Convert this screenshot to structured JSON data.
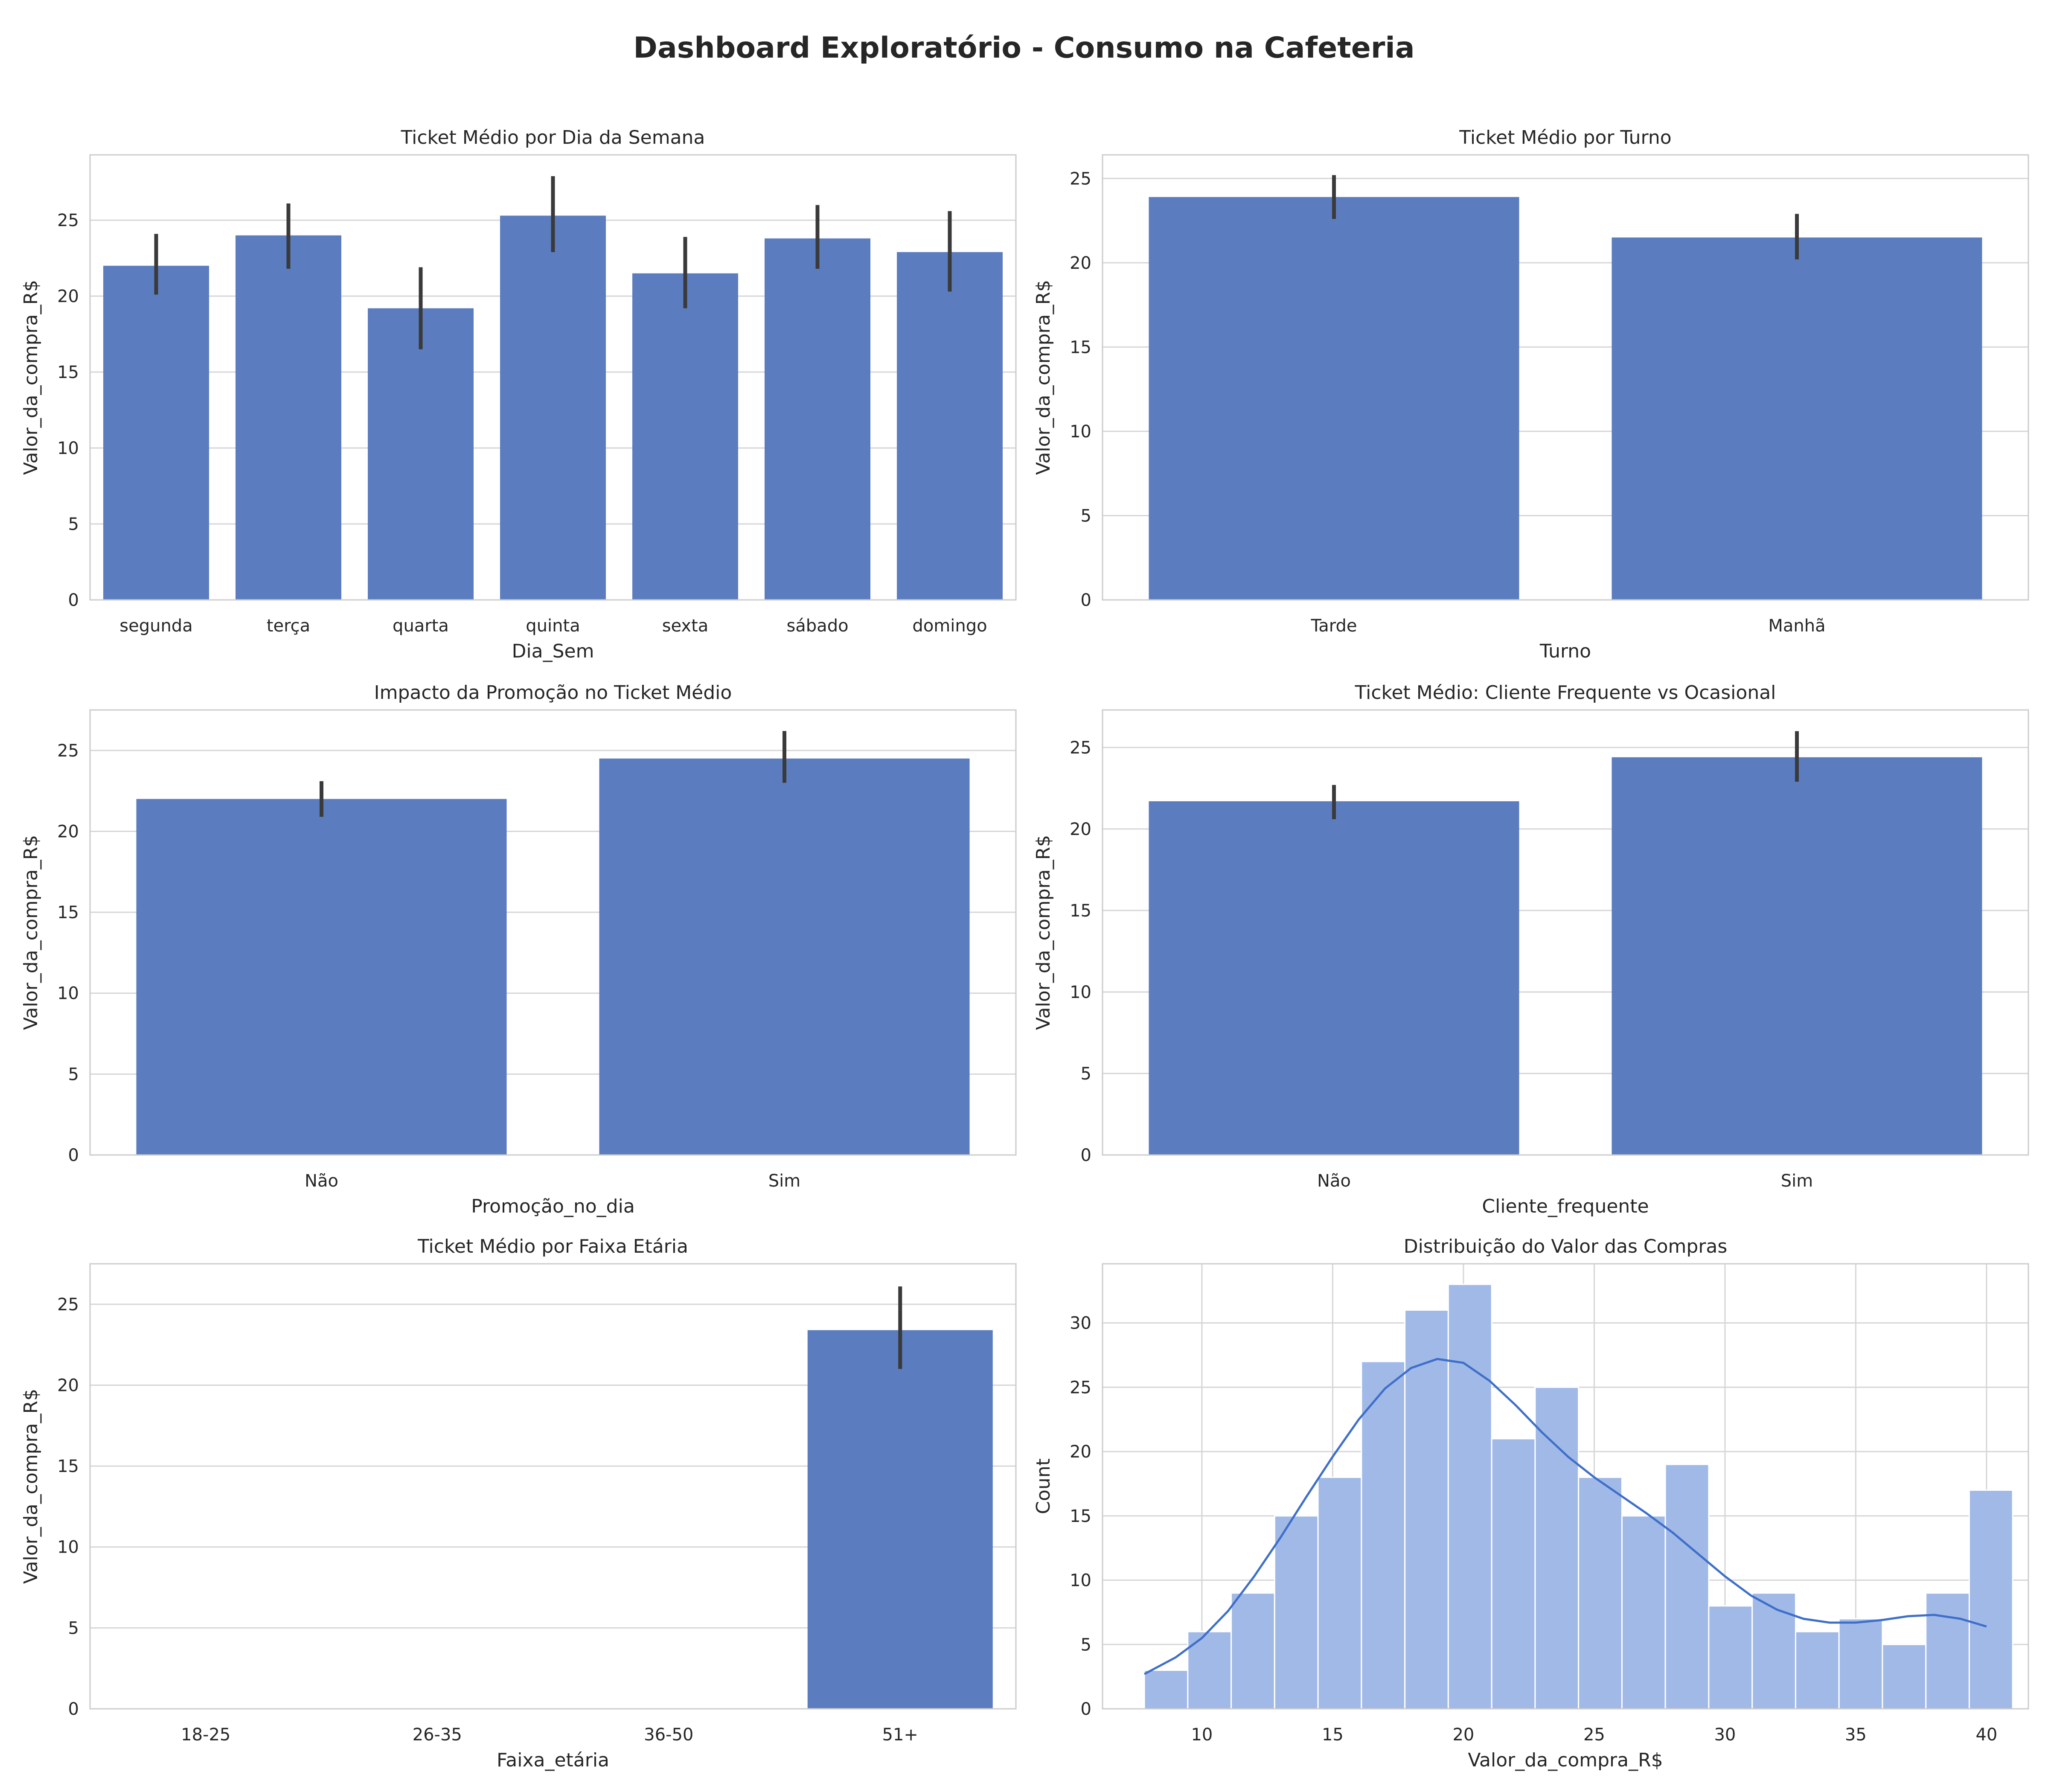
{
  "dashboard": {
    "title": "Dashboard Exploratório - Consumo na Cafeteria"
  },
  "chart_data": [
    {
      "type": "bar",
      "title": "Ticket Médio por Dia da Semana",
      "xlabel": "Dia_Sem",
      "ylabel": "Valor_da_compra_R$",
      "categories": [
        "segunda",
        "terça",
        "quarta",
        "quinta",
        "sexta",
        "sábado",
        "domingo"
      ],
      "values": [
        22.0,
        24.0,
        19.2,
        25.3,
        21.5,
        23.8,
        22.9
      ],
      "ci_low": [
        20.1,
        21.8,
        16.5,
        22.9,
        19.2,
        21.8,
        20.3
      ],
      "ci_high": [
        24.1,
        26.1,
        21.9,
        27.9,
        23.9,
        26.0,
        25.6
      ],
      "yticks": [
        0,
        5,
        10,
        15,
        20,
        25
      ],
      "ylim": [
        0,
        29.3
      ],
      "grid": true
    },
    {
      "type": "bar",
      "title": "Ticket Médio por Turno",
      "xlabel": "Turno",
      "ylabel": "Valor_da_compra_R$",
      "categories": [
        "Tarde",
        "Manhã"
      ],
      "values": [
        23.9,
        21.5
      ],
      "ci_low": [
        22.6,
        20.2
      ],
      "ci_high": [
        25.2,
        22.9
      ],
      "yticks": [
        0,
        5,
        10,
        15,
        20,
        25
      ],
      "ylim": [
        0,
        26.4
      ],
      "grid": true
    },
    {
      "type": "bar",
      "title": "Impacto da Promoção no Ticket Médio",
      "xlabel": "Promoção_no_dia",
      "ylabel": "Valor_da_compra_R$",
      "categories": [
        "Não",
        "Sim"
      ],
      "values": [
        22.0,
        24.5
      ],
      "ci_low": [
        20.9,
        23.0
      ],
      "ci_high": [
        23.1,
        26.2
      ],
      "yticks": [
        0,
        5,
        10,
        15,
        20,
        25
      ],
      "ylim": [
        0,
        27.5
      ],
      "grid": true
    },
    {
      "type": "bar",
      "title": "Ticket Médio: Cliente Frequente vs Ocasional",
      "xlabel": "Cliente_frequente",
      "ylabel": "Valor_da_compra_R$",
      "categories": [
        "Não",
        "Sim"
      ],
      "values": [
        21.7,
        24.4
      ],
      "ci_low": [
        20.6,
        22.9
      ],
      "ci_high": [
        22.7,
        26.0
      ],
      "yticks": [
        0,
        5,
        10,
        15,
        20,
        25
      ],
      "ylim": [
        0,
        27.3
      ],
      "grid": true
    },
    {
      "type": "bar",
      "title": "Ticket Médio por Faixa Etária",
      "xlabel": "Faixa_etária",
      "ylabel": "Valor_da_compra_R$",
      "categories": [
        "18-25",
        "26-35",
        "36-50",
        "51+"
      ],
      "values": [
        null,
        null,
        null,
        23.4
      ],
      "ci_low": [
        null,
        null,
        null,
        21.0
      ],
      "ci_high": [
        null,
        null,
        null,
        26.1
      ],
      "yticks": [
        0,
        5,
        10,
        15,
        20,
        25
      ],
      "ylim": [
        0,
        27.5
      ],
      "grid": true
    },
    {
      "type": "histogram",
      "title": "Distribuição do Valor das Compras",
      "xlabel": "Valor_da_compra_R$",
      "ylabel": "Count",
      "bin_start": 7.8,
      "bin_width": 1.66,
      "counts": [
        3,
        6,
        9,
        15,
        18,
        27,
        31,
        33,
        21,
        25,
        18,
        15,
        19,
        8,
        9,
        6,
        7,
        5,
        9,
        17
      ],
      "kde": {
        "x": [
          7.8,
          9,
          10,
          11,
          12,
          13,
          14,
          15,
          16,
          17,
          18,
          19,
          20,
          21,
          22,
          23,
          24,
          25,
          26,
          27,
          28,
          29,
          30,
          31,
          32,
          33,
          34,
          35,
          36,
          37,
          38,
          39,
          40
        ],
        "y": [
          2.7,
          4.0,
          5.5,
          7.6,
          10.3,
          13.3,
          16.5,
          19.6,
          22.5,
          24.9,
          26.5,
          27.2,
          26.9,
          25.5,
          23.6,
          21.5,
          19.6,
          18.0,
          16.6,
          15.2,
          13.7,
          12.0,
          10.3,
          8.8,
          7.7,
          7.0,
          6.7,
          6.7,
          6.9,
          7.2,
          7.3,
          7.0,
          6.4
        ]
      },
      "xticks": [
        10,
        15,
        20,
        25,
        30,
        35,
        40
      ],
      "yticks": [
        0,
        5,
        10,
        15,
        20,
        25,
        30
      ],
      "xlim": [
        6.2,
        41.6
      ],
      "ylim": [
        0,
        34.6
      ],
      "grid": true
    }
  ]
}
